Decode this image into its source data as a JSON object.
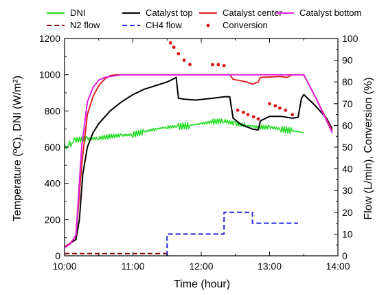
{
  "chart_data": {
    "type": "line",
    "xlabel": "Time (hour)",
    "ylabel_left": "Temperature (ºC), DNI (W/m²)",
    "ylabel_right": "Flow (L/min), Conversion (%)",
    "x_ticks": [
      "10:00",
      "11:00",
      "12:00",
      "13:00",
      "14:00"
    ],
    "xlim": [
      "10:00",
      "14:00"
    ],
    "ylim_left": [
      0,
      1200
    ],
    "ylim_right": [
      0,
      100
    ],
    "yticks_left": [
      "0",
      "200",
      "400",
      "600",
      "800",
      "1000",
      "1200"
    ],
    "yticks_right": [
      "0",
      "10",
      "20",
      "30",
      "40",
      "50",
      "60",
      "70",
      "80",
      "90",
      "100"
    ],
    "legend_position": "top",
    "series": [
      {
        "name": "DNI",
        "color": "#22dd22",
        "axis": "left",
        "style": "solid",
        "points": [
          [
            "10:00",
            600
          ],
          [
            "10:05",
            620
          ],
          [
            "10:10",
            640
          ],
          [
            "10:20",
            645
          ],
          [
            "10:30",
            650
          ],
          [
            "10:40",
            660
          ],
          [
            "10:50",
            665
          ],
          [
            "11:00",
            670
          ],
          [
            "11:10",
            685
          ],
          [
            "11:20",
            700
          ],
          [
            "11:30",
            710
          ],
          [
            "11:40",
            715
          ],
          [
            "11:50",
            720
          ],
          [
            "12:00",
            730
          ],
          [
            "12:10",
            740
          ],
          [
            "12:20",
            745
          ],
          [
            "12:30",
            730
          ],
          [
            "12:40",
            720
          ],
          [
            "12:50",
            710
          ],
          [
            "13:00",
            710
          ],
          [
            "13:10",
            700
          ],
          [
            "13:20",
            690
          ],
          [
            "13:30",
            680
          ]
        ]
      },
      {
        "name": "Catalyst top",
        "color": "#000000",
        "axis": "left",
        "style": "solid",
        "points": [
          [
            "10:00",
            50
          ],
          [
            "10:05",
            70
          ],
          [
            "10:10",
            90
          ],
          [
            "10:13",
            200
          ],
          [
            "10:16",
            450
          ],
          [
            "10:20",
            600
          ],
          [
            "10:25",
            680
          ],
          [
            "10:30",
            730
          ],
          [
            "10:40",
            800
          ],
          [
            "10:50",
            850
          ],
          [
            "11:00",
            890
          ],
          [
            "11:10",
            920
          ],
          [
            "11:20",
            940
          ],
          [
            "11:30",
            960
          ],
          [
            "11:35",
            975
          ],
          [
            "11:38",
            985
          ],
          [
            "11:40",
            870
          ],
          [
            "11:45",
            865
          ],
          [
            "11:55",
            860
          ],
          [
            "12:10",
            870
          ],
          [
            "12:20",
            878
          ],
          [
            "12:25",
            878
          ],
          [
            "12:28",
            760
          ],
          [
            "12:35",
            725
          ],
          [
            "12:45",
            700
          ],
          [
            "12:50",
            695
          ],
          [
            "12:52",
            745
          ],
          [
            "13:00",
            770
          ],
          [
            "13:10",
            770
          ],
          [
            "13:20",
            760
          ],
          [
            "13:25",
            765
          ],
          [
            "13:28",
            870
          ],
          [
            "13:30",
            890
          ],
          [
            "13:40",
            830
          ],
          [
            "13:50",
            760
          ],
          [
            "13:55",
            700
          ]
        ]
      },
      {
        "name": "Catalyst center",
        "color": "#dd2222",
        "axis": "left",
        "style": "solid",
        "points": [
          [
            "10:00",
            50
          ],
          [
            "10:05",
            70
          ],
          [
            "10:10",
            110
          ],
          [
            "10:15",
            500
          ],
          [
            "10:20",
            780
          ],
          [
            "10:25",
            880
          ],
          [
            "10:30",
            940
          ],
          [
            "10:35",
            975
          ],
          [
            "10:40",
            995
          ],
          [
            "10:45",
            1000
          ],
          [
            "12:25",
            1000
          ],
          [
            "12:28",
            975
          ],
          [
            "12:40",
            960
          ],
          [
            "12:45",
            948
          ],
          [
            "12:50",
            960
          ],
          [
            "12:52",
            985
          ],
          [
            "13:10",
            990
          ],
          [
            "13:15",
            985
          ],
          [
            "13:20",
            1000
          ],
          [
            "13:30",
            1000
          ],
          [
            "13:40",
            880
          ],
          [
            "13:55",
            690
          ]
        ]
      },
      {
        "name": "Catalyst bottom",
        "color": "#e020e0",
        "axis": "left",
        "style": "solid",
        "points": [
          [
            "10:00",
            45
          ],
          [
            "10:05",
            65
          ],
          [
            "10:10",
            115
          ],
          [
            "10:15",
            600
          ],
          [
            "10:20",
            850
          ],
          [
            "10:25",
            930
          ],
          [
            "10:30",
            970
          ],
          [
            "10:35",
            985
          ],
          [
            "10:40",
            990
          ],
          [
            "10:45",
            995
          ],
          [
            "10:50",
            1000
          ],
          [
            "13:30",
            1000
          ],
          [
            "13:40",
            880
          ],
          [
            "13:55",
            680
          ]
        ]
      },
      {
        "name": "N2 flow",
        "color": "#8b0000",
        "axis": "right",
        "style": "dashed",
        "points": [
          [
            "10:00",
            1
          ],
          [
            "11:30",
            1
          ],
          [
            "11:30",
            0
          ]
        ]
      },
      {
        "name": "CH4 flow",
        "color": "#2222dd",
        "axis": "right",
        "style": "dashed",
        "points": [
          [
            "11:30",
            0
          ],
          [
            "11:30",
            10
          ],
          [
            "12:20",
            10
          ],
          [
            "12:20",
            20
          ],
          [
            "12:45",
            20
          ],
          [
            "12:45",
            15
          ],
          [
            "13:25",
            15
          ]
        ]
      },
      {
        "name": "Conversion",
        "color": "#dd1111",
        "axis": "right",
        "style": "dots",
        "points": [
          [
            "11:33",
            98
          ],
          [
            "11:36",
            96
          ],
          [
            "11:40",
            93
          ],
          [
            "11:45",
            90
          ],
          [
            "11:50",
            88
          ],
          [
            "12:10",
            88
          ],
          [
            "12:15",
            88
          ],
          [
            "12:20",
            87.5
          ],
          [
            "12:32",
            67
          ],
          [
            "12:37",
            66
          ],
          [
            "12:41",
            65
          ],
          [
            "12:46",
            64
          ],
          [
            "12:50",
            63
          ],
          [
            "13:00",
            70
          ],
          [
            "13:05",
            69
          ],
          [
            "13:09",
            68
          ],
          [
            "13:14",
            67
          ],
          [
            "13:20",
            65
          ]
        ]
      }
    ]
  }
}
